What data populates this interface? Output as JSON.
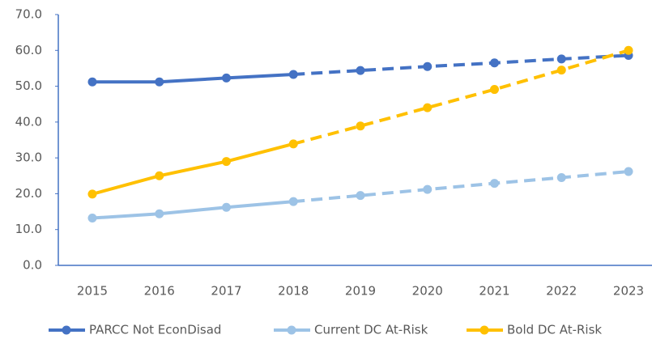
{
  "chart_data": {
    "type": "line",
    "categories": [
      "2015",
      "2016",
      "2017",
      "2018",
      "2019",
      "2020",
      "2021",
      "2022",
      "2023"
    ],
    "dashed_from": "2018",
    "series": [
      {
        "name": "PARCC Not EconDisad",
        "color": "#4472c4",
        "values": [
          51.2,
          51.2,
          52.3,
          53.3,
          54.4,
          55.5,
          56.5,
          57.6,
          58.6
        ]
      },
      {
        "name": "Current DC At-Risk",
        "color": "#9dc3e6",
        "values": [
          13.2,
          14.4,
          16.2,
          17.8,
          19.5,
          21.2,
          22.9,
          24.5,
          26.2
        ]
      },
      {
        "name": "Bold DC At-Risk",
        "color": "#ffc000",
        "values": [
          19.9,
          25.0,
          29.0,
          33.9,
          38.9,
          44.0,
          49.1,
          54.5,
          60.0
        ]
      }
    ],
    "ylim": [
      0,
      70
    ],
    "yticks": [
      {
        "value": 0,
        "label": "0.0"
      },
      {
        "value": 10,
        "label": "10.0"
      },
      {
        "value": 20,
        "label": "20.0"
      },
      {
        "value": 30,
        "label": "30.0"
      },
      {
        "value": 40,
        "label": "40.0"
      },
      {
        "value": 50,
        "label": "50.0"
      },
      {
        "value": 60,
        "label": "60.0"
      },
      {
        "value": 70,
        "label": "70.0"
      }
    ],
    "grid": false,
    "legend": "bottom"
  }
}
